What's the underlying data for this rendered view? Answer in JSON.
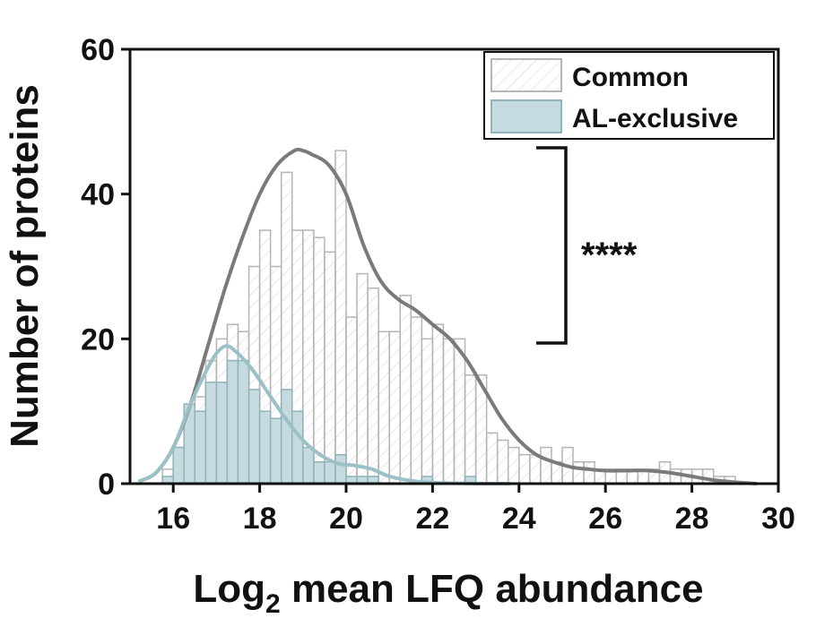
{
  "chart_data": {
    "type": "bar",
    "xlabel": "Log2 mean LFQ abundance",
    "xlabel_main": "Log",
    "xlabel_sub": "2",
    "xlabel_rest": " mean LFQ abundance",
    "ylabel": "Number of proteins",
    "xlim": [
      15,
      30
    ],
    "ylim": [
      0,
      60
    ],
    "xticks": [
      16,
      18,
      20,
      22,
      24,
      26,
      28,
      30
    ],
    "yticks": [
      0,
      20,
      40,
      60
    ],
    "bin_width": 0.25,
    "legend_position": "top-right",
    "grid": false,
    "significance": "****",
    "series": [
      {
        "name": "Common",
        "fill": "#ffffff",
        "stroke": "#b5b5b5",
        "hatch": true,
        "curve_color": "#7a7a7a",
        "bin_starts": [
          15.75,
          16.0,
          16.25,
          16.5,
          16.75,
          17.0,
          17.25,
          17.5,
          17.75,
          18.0,
          18.25,
          18.5,
          18.75,
          19.0,
          19.25,
          19.5,
          19.75,
          20.0,
          20.25,
          20.5,
          20.75,
          21.0,
          21.25,
          21.5,
          21.75,
          22.0,
          22.25,
          22.5,
          22.75,
          23.0,
          23.25,
          23.5,
          23.75,
          24.0,
          24.25,
          24.5,
          24.75,
          25.0,
          25.25,
          25.5,
          25.75,
          26.0,
          26.25,
          26.5,
          26.75,
          27.0,
          27.25,
          27.5,
          27.75,
          28.0,
          28.25,
          28.5,
          28.75
        ],
        "values": [
          2,
          5,
          10,
          12,
          17,
          20,
          22,
          21,
          30,
          35,
          30,
          43,
          35,
          35,
          34,
          32,
          46,
          23,
          29,
          27,
          21,
          21,
          26,
          23,
          20,
          22,
          20,
          20,
          15,
          15,
          7,
          6,
          5,
          4,
          4,
          5,
          3,
          5,
          3,
          3,
          2,
          2,
          2,
          2,
          2,
          2,
          3,
          2,
          2,
          2,
          2,
          1,
          1
        ],
        "curve_x": [
          15.2,
          15.6,
          16.0,
          16.4,
          16.8,
          17.2,
          17.6,
          18.0,
          18.4,
          18.8,
          19.0,
          19.2,
          19.6,
          20.0,
          20.4,
          20.8,
          21.2,
          21.6,
          22.0,
          22.4,
          22.8,
          23.2,
          23.6,
          24.0,
          24.4,
          24.8,
          25.2,
          25.6,
          26.0,
          26.5,
          27.0,
          27.5,
          28.0,
          28.5,
          29.0,
          29.5
        ],
        "curve_y": [
          0.3,
          1.5,
          5,
          11,
          19,
          27,
          34,
          40,
          44,
          46,
          46,
          45.5,
          44,
          40,
          33,
          28,
          25.5,
          24,
          22,
          20,
          17,
          13,
          9,
          6,
          4,
          3,
          2.3,
          2,
          1.8,
          1.8,
          1.8,
          1.5,
          1.0,
          0.5,
          0.2,
          0
        ]
      },
      {
        "name": "AL-exclusive",
        "fill": "#c5dbdf",
        "stroke": "#8fb3ba",
        "hatch": false,
        "curve_color": "#9bc0c7",
        "bin_starts": [
          15.75,
          16.0,
          16.25,
          16.5,
          16.75,
          17.0,
          17.25,
          17.5,
          17.75,
          18.0,
          18.25,
          18.5,
          18.75,
          19.0,
          19.25,
          19.5,
          19.75,
          20.0,
          20.25,
          20.5,
          20.75,
          21.0,
          21.25,
          21.5,
          21.75,
          22.0,
          22.25,
          22.5,
          22.75
        ],
        "values": [
          1,
          5,
          11,
          10,
          14,
          14,
          17,
          17,
          13,
          10,
          9,
          13,
          10,
          5,
          3,
          3,
          4,
          1,
          1,
          1,
          0,
          0,
          0,
          0,
          1,
          0,
          0,
          0,
          1
        ],
        "curve_x": [
          15.2,
          15.6,
          16.0,
          16.4,
          16.8,
          17.0,
          17.2,
          17.4,
          17.8,
          18.2,
          18.6,
          19.0,
          19.4,
          19.8,
          20.2,
          20.6,
          21.0,
          21.4,
          21.8,
          22.2,
          22.6,
          23.0,
          23.4,
          23.8
        ],
        "curve_y": [
          0.3,
          1.5,
          5,
          11,
          16,
          18,
          19,
          18.5,
          16,
          12.5,
          9,
          6,
          4,
          2.8,
          2.5,
          2,
          1,
          0.5,
          0.2,
          0.1,
          0.05,
          0,
          0,
          0
        ]
      }
    ]
  }
}
